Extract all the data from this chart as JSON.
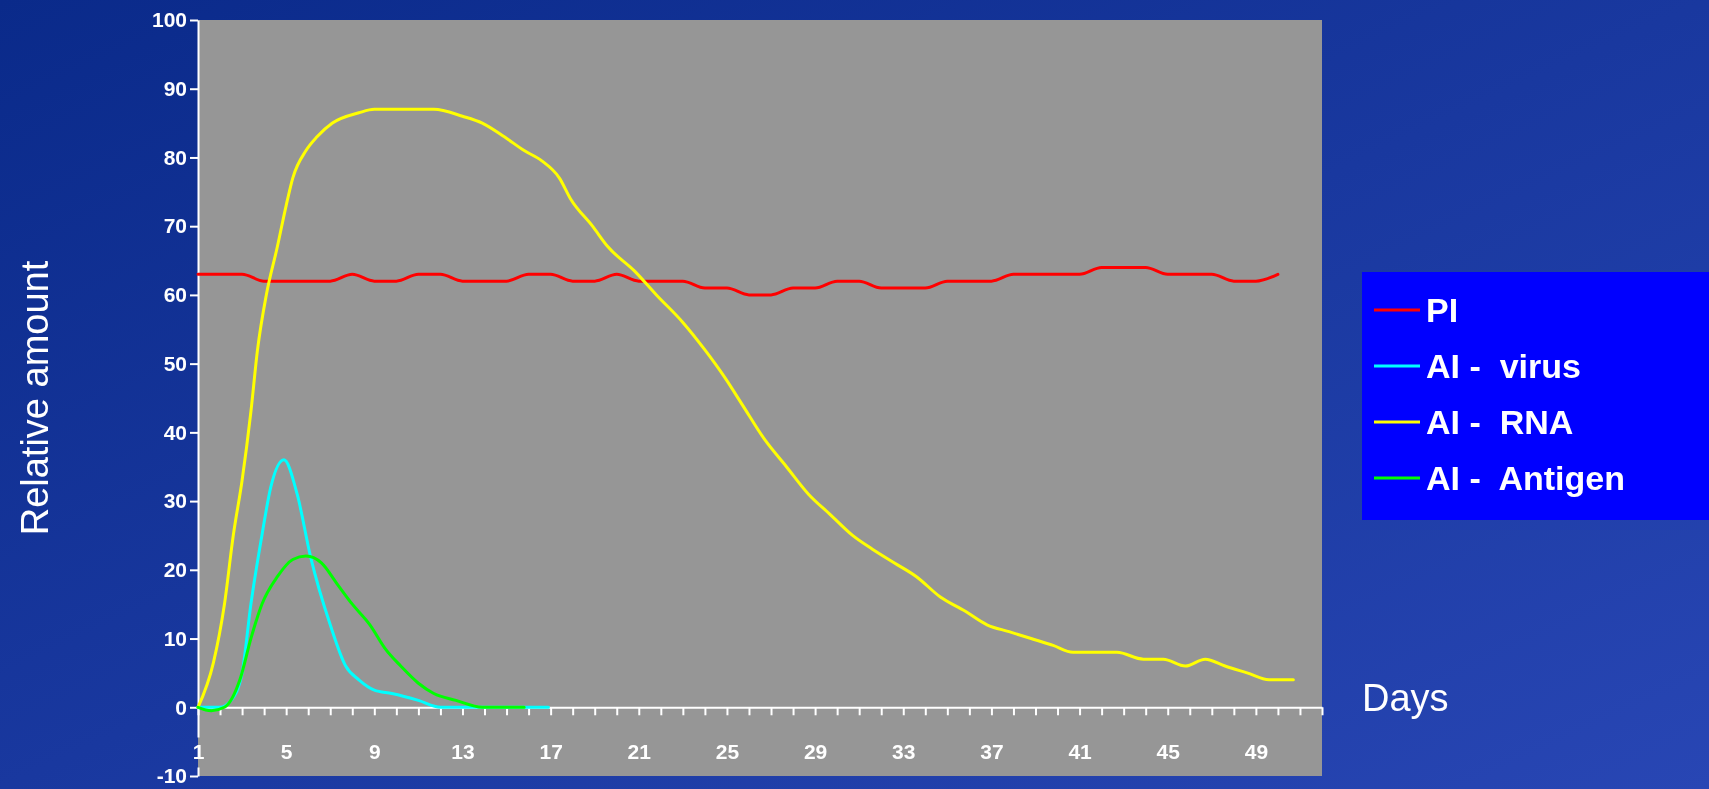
{
  "chart_data": {
    "type": "line",
    "xlabel": "Days",
    "ylabel": "Relative amount",
    "xlim": [
      1,
      52
    ],
    "ylim": [
      -10,
      100
    ],
    "xticks": [
      1,
      {
        "value": 2,
        "label": null
      },
      {
        "value": 3,
        "label": null
      },
      {
        "value": 4,
        "label": null
      },
      5,
      {
        "value": 6,
        "label": null
      },
      {
        "value": 7,
        "label": null
      },
      {
        "value": 8,
        "label": null
      },
      9,
      {
        "value": 10,
        "label": null
      },
      {
        "value": 11,
        "label": null
      },
      {
        "value": 12,
        "label": null
      },
      13,
      {
        "value": 14,
        "label": null
      },
      {
        "value": 15,
        "label": null
      },
      {
        "value": 16,
        "label": null
      },
      17,
      {
        "value": 18,
        "label": null
      },
      {
        "value": 19,
        "label": null
      },
      {
        "value": 20,
        "label": null
      },
      21,
      {
        "value": 22,
        "label": null
      },
      {
        "value": 23,
        "label": null
      },
      {
        "value": 24,
        "label": null
      },
      25,
      {
        "value": 26,
        "label": null
      },
      {
        "value": 27,
        "label": null
      },
      {
        "value": 28,
        "label": null
      },
      29,
      {
        "value": 30,
        "label": null
      },
      {
        "value": 31,
        "label": null
      },
      {
        "value": 32,
        "label": null
      },
      33,
      {
        "value": 34,
        "label": null
      },
      {
        "value": 35,
        "label": null
      },
      {
        "value": 36,
        "label": null
      },
      37,
      {
        "value": 38,
        "label": null
      },
      {
        "value": 39,
        "label": null
      },
      {
        "value": 40,
        "label": null
      },
      41,
      {
        "value": 42,
        "label": null
      },
      {
        "value": 43,
        "label": null
      },
      {
        "value": 44,
        "label": null
      },
      45,
      {
        "value": 46,
        "label": null
      },
      {
        "value": 47,
        "label": null
      },
      {
        "value": 48,
        "label": null
      },
      49,
      {
        "value": 50,
        "label": null
      },
      {
        "value": 51,
        "label": null
      },
      {
        "value": 52,
        "label": null
      }
    ],
    "yticks": [
      -10,
      0,
      10,
      20,
      30,
      40,
      50,
      60,
      70,
      80,
      90,
      100
    ],
    "legend": "right",
    "marker": "none",
    "line_style": "solid",
    "series": [
      {
        "name": "PI",
        "color": "#ff0000",
        "x": [
          1,
          2,
          3,
          4,
          5,
          6,
          7,
          8,
          9,
          10,
          11,
          12,
          13,
          14,
          15,
          16,
          17,
          18,
          19,
          20,
          21,
          22,
          23,
          24,
          25,
          26,
          27,
          28,
          29,
          30,
          31,
          32,
          33,
          34,
          35,
          36,
          37,
          38,
          39,
          40,
          41,
          42,
          43,
          44,
          45,
          46,
          47,
          48,
          49,
          50
        ],
        "values": [
          63,
          63,
          63,
          62,
          62,
          62,
          62,
          63,
          62,
          62,
          63,
          63,
          62,
          62,
          62,
          63,
          63,
          62,
          62,
          63,
          62,
          62,
          62,
          61,
          61,
          60,
          60,
          61,
          61,
          62,
          62,
          61,
          61,
          61,
          62,
          62,
          62,
          63,
          63,
          63,
          63,
          64,
          64,
          64,
          63,
          63,
          63,
          62,
          62,
          63
        ]
      },
      {
        "name": "AI -  virus",
        "color": "#00ffff",
        "x": [
          1,
          2.0,
          2.5,
          3.0,
          3.4,
          3.9,
          4.3,
          4.9,
          5.5,
          6.1,
          7.0,
          7.7,
          8.3,
          9.0,
          9.8,
          11.0,
          12.0,
          16.9
        ],
        "values": [
          0,
          0,
          1,
          5,
          15,
          25,
          32,
          36,
          31,
          22,
          12,
          6,
          4,
          2.5,
          2,
          1,
          0,
          0
        ]
      },
      {
        "name": "AI -  RNA",
        "color": "#ffff00",
        "x": [
          1,
          1.7,
          2.2,
          2.6,
          3.0,
          3.4,
          3.7,
          4.1,
          4.6,
          5.0,
          5.3,
          5.9,
          6.4,
          7.1,
          8.3,
          9.0,
          11.7,
          13.0,
          13.9,
          14.9,
          15.8,
          16.6,
          17.4,
          17.9,
          18.9,
          19.6,
          20.8,
          21.8,
          23.0,
          24.0,
          24.9,
          25.7,
          26.7,
          27.7,
          28.7,
          29.7,
          30.7,
          31.6,
          32.6,
          33.6,
          34.7,
          35.8,
          36.8,
          37.8,
          38.8,
          39.8,
          40.7,
          42.7,
          43.9,
          44.8,
          45.8,
          46.7,
          47.6,
          48.6,
          49.6,
          50.7
        ],
        "values": [
          0,
          6.5,
          15,
          25,
          33,
          43,
          52,
          60,
          67,
          73,
          77,
          81,
          83,
          85,
          86.5,
          87,
          87,
          86,
          85,
          83,
          81,
          79.5,
          77,
          74,
          70,
          67,
          63.5,
          60,
          56,
          52,
          48,
          44,
          39,
          35,
          31,
          28,
          25,
          23,
          21,
          19,
          16,
          14,
          12,
          11,
          10,
          9,
          8,
          8,
          7,
          7,
          6,
          7,
          6,
          5,
          4,
          4
        ]
      },
      {
        "name": "AI -  Antigen",
        "color": "#00ff00",
        "x": [
          1,
          1.6,
          2.2,
          2.9,
          3.4,
          3.9,
          4.6,
          5.3,
          5.9,
          6.6,
          7.3,
          8.0,
          8.8,
          9.5,
          10.2,
          11.0,
          11.7,
          12.7,
          13.9,
          15.8
        ],
        "values": [
          0,
          -0.5,
          0,
          4,
          10,
          15,
          19,
          21.5,
          22,
          21,
          18,
          15,
          12,
          8.5,
          6,
          3.5,
          2,
          1,
          0,
          0
        ]
      }
    ]
  }
}
